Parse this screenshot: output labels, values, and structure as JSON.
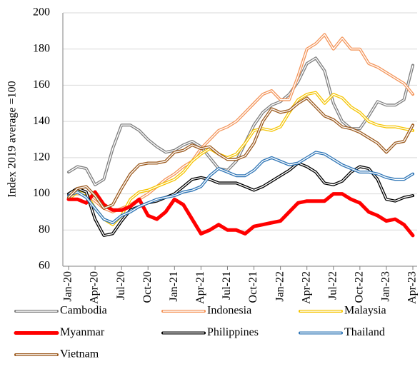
{
  "chart_data": {
    "type": "line",
    "y_label": "Index 2019 average =100",
    "categories": [
      "Jan-20",
      null,
      null,
      "Apr-20",
      null,
      null,
      "Jul-20",
      null,
      null,
      "Oct-20",
      null,
      null,
      "Jan-21",
      null,
      null,
      "Apr-21",
      null,
      null,
      "Jul-21",
      null,
      null,
      "Oct-21",
      null,
      null,
      "Jan-22",
      null,
      null,
      "Apr-22",
      null,
      null,
      "Jul-22",
      null,
      null,
      "Oct-22",
      null,
      null,
      "Jan-23",
      null,
      null,
      "Apr-23"
    ],
    "ylim": [
      60,
      200
    ],
    "yticks": [
      60,
      80,
      100,
      120,
      140,
      160,
      180,
      200
    ],
    "grid": true,
    "legend": "bottom",
    "series": [
      {
        "name": "Cambodia",
        "color": "#7f7f7f",
        "values": [
          112,
          115,
          114,
          105,
          108,
          125,
          138,
          138,
          135,
          130,
          126,
          123,
          124,
          127,
          129,
          126,
          120,
          114,
          113,
          118,
          128,
          138,
          145,
          149,
          151,
          155,
          162,
          172,
          175,
          168,
          150,
          140,
          136,
          136,
          143,
          151,
          149,
          149,
          152,
          171
        ]
      },
      {
        "name": "Indonesia",
        "color": "#f4955a",
        "values": [
          100,
          100,
          100,
          96,
          92,
          90,
          92,
          94,
          97,
          100,
          104,
          108,
          111,
          115,
          118,
          125,
          130,
          135,
          137,
          140,
          145,
          150,
          155,
          157,
          152,
          152,
          165,
          180,
          183,
          188,
          180,
          186,
          180,
          180,
          172,
          170,
          167,
          164,
          161,
          155
        ]
      },
      {
        "name": "Malaysia",
        "color": "#f5c400",
        "values": [
          97,
          101,
          100,
          92,
          86,
          83,
          88,
          97,
          101,
          102,
          104,
          106,
          108,
          112,
          118,
          122,
          125,
          122,
          120,
          122,
          128,
          135,
          136,
          135,
          137,
          145,
          152,
          155,
          156,
          150,
          155,
          153,
          148,
          145,
          140,
          138,
          137,
          137,
          136,
          135
        ]
      },
      {
        "name": "Myanmar",
        "color": "#ff0000",
        "values": [
          97,
          97,
          95,
          101,
          94,
          91,
          91,
          93,
          97,
          88,
          86,
          90,
          97,
          94,
          86,
          78,
          80,
          83,
          80,
          80,
          78,
          82,
          83,
          84,
          85,
          90,
          95,
          96,
          96,
          96,
          100,
          100,
          97,
          95,
          90,
          88,
          85,
          86,
          83,
          77
        ]
      },
      {
        "name": "Philippines",
        "color": "#000000",
        "values": [
          100,
          103,
          101,
          86,
          77,
          78,
          85,
          91,
          93,
          95,
          96,
          98,
          100,
          104,
          108,
          109,
          108,
          106,
          106,
          106,
          104,
          102,
          104,
          107,
          110,
          113,
          117,
          115,
          112,
          106,
          105,
          107,
          112,
          115,
          114,
          108,
          97,
          96,
          98,
          99
        ]
      },
      {
        "name": "Thailand",
        "color": "#2e75b6",
        "values": [
          99,
          101,
          98,
          92,
          86,
          84,
          88,
          90,
          93,
          95,
          97,
          98,
          99,
          101,
          102,
          104,
          110,
          114,
          112,
          110,
          110,
          113,
          118,
          120,
          118,
          116,
          117,
          120,
          123,
          122,
          119,
          116,
          114,
          112,
          112,
          111,
          109,
          108,
          108,
          111
        ]
      },
      {
        "name": "Vietnam",
        "color": "#9c5a1e",
        "values": [
          98,
          103,
          104,
          99,
          92,
          94,
          103,
          111,
          116,
          117,
          117,
          118,
          123,
          124,
          127,
          125,
          126,
          122,
          119,
          119,
          121,
          128,
          140,
          147,
          145,
          146,
          150,
          153,
          148,
          143,
          141,
          137,
          136,
          134,
          131,
          128,
          123,
          128,
          129,
          138
        ]
      }
    ]
  }
}
